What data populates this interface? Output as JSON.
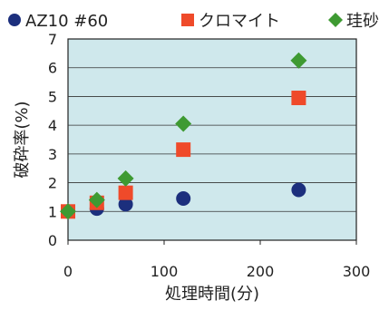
{
  "chart_data": {
    "type": "scatter",
    "xlabel": "処理時間(分)",
    "ylabel": "破砕率(%)",
    "xlim": [
      0,
      300
    ],
    "ylim": [
      0,
      7
    ],
    "x_ticks": [
      "0",
      "100",
      "200",
      "300"
    ],
    "y_ticks": [
      "0",
      "1",
      "2",
      "3",
      "4",
      "5",
      "6",
      "7"
    ],
    "grid": "horizontal",
    "legend_position": "top",
    "background_color": "#cfe8ec",
    "series": [
      {
        "name": "AZ10 #60",
        "marker": "circle",
        "color": "#1c2f7d",
        "x": [
          0,
          30,
          60,
          120,
          240
        ],
        "y": [
          1.0,
          1.1,
          1.25,
          1.45,
          1.75
        ]
      },
      {
        "name": "クロマイト",
        "marker": "square",
        "color": "#ef4a2a",
        "x": [
          0,
          30,
          60,
          120,
          240
        ],
        "y": [
          1.0,
          1.3,
          1.65,
          3.15,
          4.95
        ]
      },
      {
        "name": "珪砂",
        "marker": "diamond",
        "color": "#3e9a32",
        "x": [
          0,
          30,
          60,
          120,
          240
        ],
        "y": [
          1.0,
          1.4,
          2.15,
          4.05,
          6.25
        ]
      }
    ]
  }
}
